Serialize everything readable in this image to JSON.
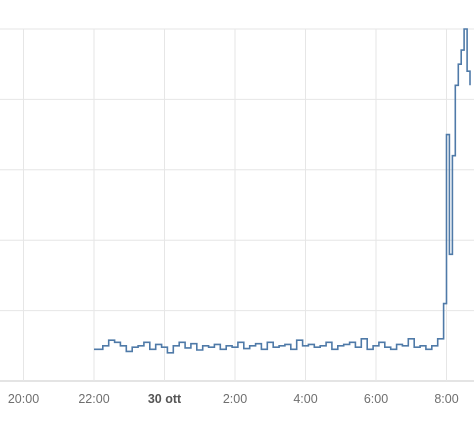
{
  "chart_data": {
    "type": "line",
    "step": true,
    "title": "",
    "xlabel": "",
    "ylabel": "",
    "grid": true,
    "x_ticks": [
      {
        "x": "19:40",
        "label": "20:00",
        "bold": false
      },
      {
        "x": "21:40",
        "label": "22:00",
        "bold": false
      },
      {
        "x": "23:40",
        "label": "30 ott",
        "bold": true
      },
      {
        "x": "01:40",
        "label": "2:00",
        "bold": false
      },
      {
        "x": "03:40",
        "label": "4:00",
        "bold": false
      },
      {
        "x": "05:40",
        "label": "6:00",
        "bold": false
      },
      {
        "x": "07:40",
        "label": "8:00",
        "bold": false
      }
    ],
    "xlim": [
      "19:00",
      "08:20"
    ],
    "ylim": [
      0,
      5
    ],
    "y_gridlines": [
      0,
      1,
      2,
      3,
      4,
      5
    ],
    "series": [
      {
        "name": "",
        "color": "#4f7aa8",
        "x": [
          "21:40",
          "21:55",
          "22:05",
          "22:15",
          "22:25",
          "22:35",
          "22:45",
          "22:55",
          "23:05",
          "23:15",
          "23:25",
          "23:35",
          "23:45",
          "23:55",
          "00:05",
          "00:15",
          "00:25",
          "00:35",
          "00:45",
          "00:55",
          "01:05",
          "01:15",
          "01:25",
          "01:35",
          "01:45",
          "01:55",
          "02:05",
          "02:15",
          "02:25",
          "02:35",
          "02:45",
          "02:55",
          "03:05",
          "03:15",
          "03:25",
          "03:35",
          "03:45",
          "03:55",
          "04:05",
          "04:15",
          "04:25",
          "04:35",
          "04:45",
          "04:55",
          "05:05",
          "05:15",
          "05:25",
          "05:35",
          "05:45",
          "05:55",
          "06:05",
          "06:15",
          "06:25",
          "06:35",
          "06:45",
          "06:55",
          "07:05",
          "07:15",
          "07:25",
          "07:35",
          "07:40",
          "07:45",
          "07:50",
          "07:55",
          "08:00",
          "08:05",
          "08:10",
          "08:15",
          "08:20"
        ],
        "values": [
          0.45,
          0.5,
          0.58,
          0.55,
          0.5,
          0.42,
          0.48,
          0.5,
          0.55,
          0.45,
          0.52,
          0.48,
          0.4,
          0.5,
          0.55,
          0.47,
          0.53,
          0.44,
          0.5,
          0.48,
          0.52,
          0.45,
          0.5,
          0.48,
          0.55,
          0.46,
          0.5,
          0.53,
          0.45,
          0.55,
          0.48,
          0.5,
          0.52,
          0.45,
          0.58,
          0.5,
          0.52,
          0.48,
          0.5,
          0.55,
          0.45,
          0.5,
          0.52,
          0.55,
          0.48,
          0.6,
          0.45,
          0.5,
          0.55,
          0.48,
          0.45,
          0.52,
          0.5,
          0.6,
          0.48,
          0.5,
          0.45,
          0.5,
          0.6,
          1.1,
          3.5,
          1.8,
          3.2,
          4.2,
          4.5,
          4.7,
          5.0,
          4.4,
          4.2
        ]
      }
    ]
  }
}
